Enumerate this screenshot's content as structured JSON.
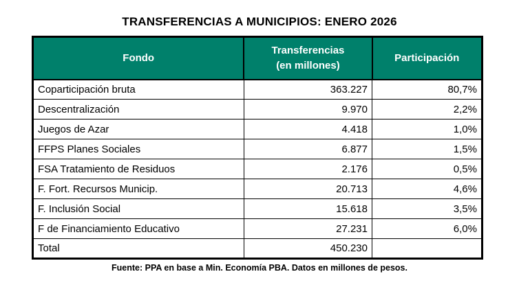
{
  "page": {
    "title": "TRANSFERENCIAS A MUNICIPIOS: ENERO 2026",
    "footnote": "Fuente: PPA en base a Min. Economía PBA. Datos en millones de pesos."
  },
  "colors": {
    "header_bg": "#00806B",
    "header_text": "#ffffff",
    "border": "#000000",
    "row_bg": "#ffffff"
  },
  "table": {
    "headers": {
      "fondo": "Fondo",
      "transferencias": "Transferencias\n(en millones)",
      "participacion": "Participación"
    },
    "rows": [
      {
        "fondo": "Coparticipación bruta",
        "transferencias": "363.227",
        "participacion": "80,7%"
      },
      {
        "fondo": "Descentralización",
        "transferencias": "9.970",
        "participacion": "2,2%"
      },
      {
        "fondo": "Juegos de Azar",
        "transferencias": "4.418",
        "participacion": "1,0%"
      },
      {
        "fondo": "FFPS Planes Sociales",
        "transferencias": "6.877",
        "participacion": "1,5%"
      },
      {
        "fondo": "FSA Tratamiento de Residuos",
        "transferencias": "2.176",
        "participacion": "0,5%"
      },
      {
        "fondo": "F. Fort. Recursos Municip.",
        "transferencias": "20.713",
        "participacion": "4,6%"
      },
      {
        "fondo": "F. Inclusión Social",
        "transferencias": "15.618",
        "participacion": "3,5%"
      },
      {
        "fondo": "F de Financiamiento Educativo",
        "transferencias": "27.231",
        "participacion": "6,0%"
      },
      {
        "fondo": "Total",
        "transferencias": "450.230",
        "participacion": ""
      }
    ]
  },
  "chart_data": {
    "type": "table",
    "title": "TRANSFERENCIAS A MUNICIPIOS: ENERO 2026",
    "columns": [
      "Fondo",
      "Transferencias (en millones)",
      "Participación"
    ],
    "rows": [
      [
        "Coparticipación bruta",
        363.227,
        "80,7%"
      ],
      [
        "Descentralización",
        9.97,
        "2,2%"
      ],
      [
        "Juegos de Azar",
        4.418,
        "1,0%"
      ],
      [
        "FFPS Planes Sociales",
        6.877,
        "1,5%"
      ],
      [
        "FSA Tratamiento de Residuos",
        2.176,
        "0,5%"
      ],
      [
        "F. Fort. Recursos Municip.",
        20.713,
        "4,6%"
      ],
      [
        "F. Inclusión Social",
        15.618,
        "3,5%"
      ],
      [
        "F de Financiamiento Educativo",
        27.231,
        "6,0%"
      ],
      [
        "Total",
        450.23,
        ""
      ]
    ],
    "footnote": "Fuente: PPA en base a Min. Economía PBA. Datos en millones de pesos.",
    "units": "millones de pesos"
  }
}
